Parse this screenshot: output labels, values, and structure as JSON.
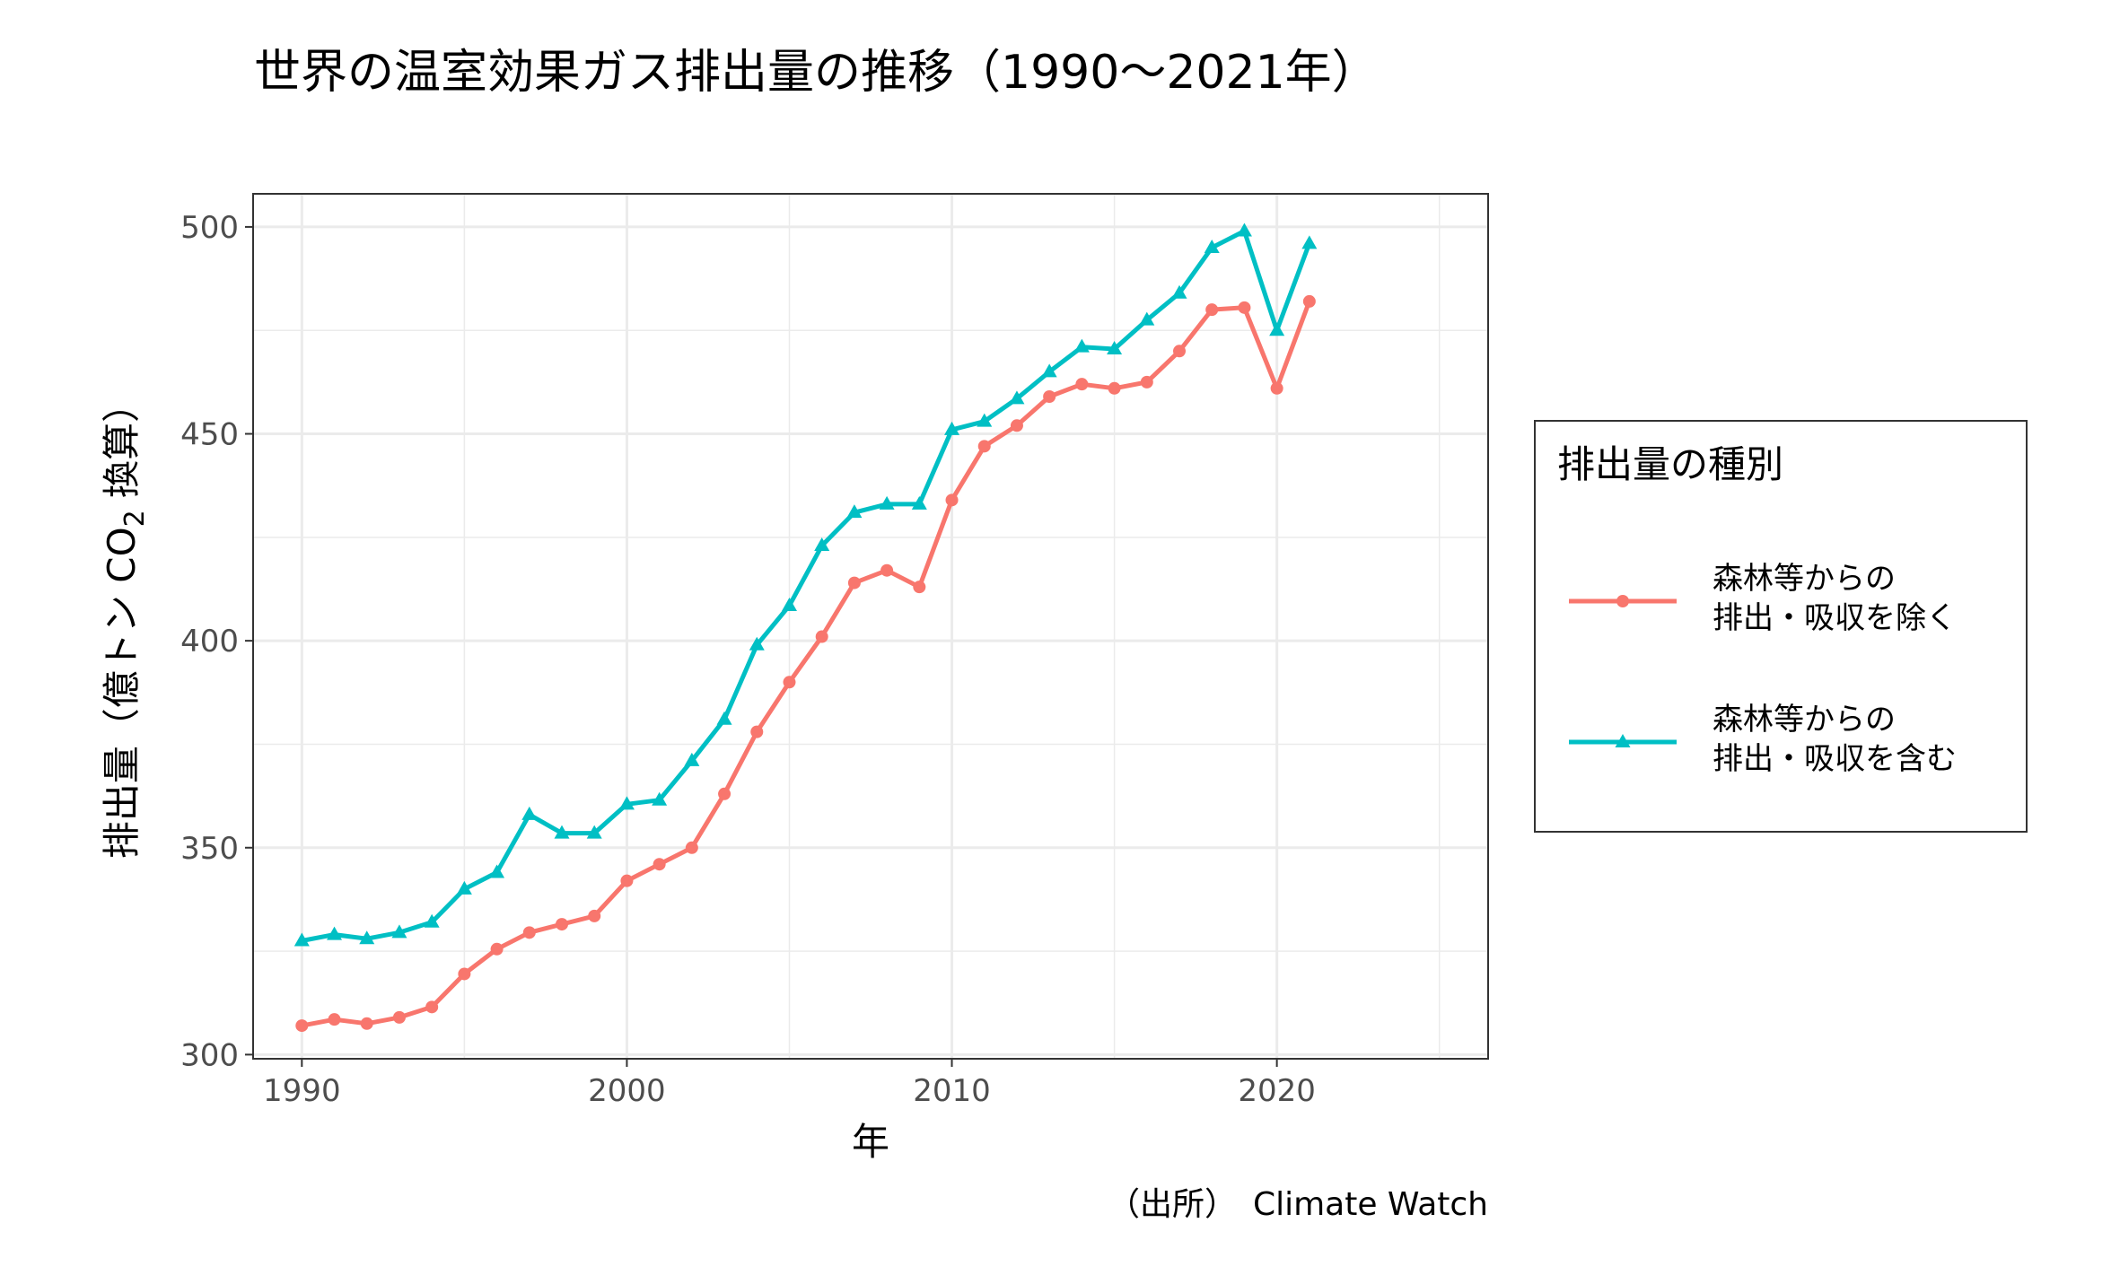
{
  "chart_data": {
    "type": "line",
    "title": "世界の温室効果ガス排出量の推移（1990〜2021年）",
    "xlabel": "年",
    "ylabel_main": "排出量（億トン CO",
    "ylabel_sub": "2",
    "ylabel_tail": " 換算）",
    "caption": "（出所）　Climate Watch",
    "xlim": [
      1988.5,
      2026.5
    ],
    "ylim": [
      299,
      508
    ],
    "x_ticks": [
      1990,
      2000,
      2010,
      2020
    ],
    "y_ticks": [
      300,
      350,
      400,
      450,
      500
    ],
    "grid": true,
    "legend": {
      "title": "排出量の種別",
      "position": "right"
    },
    "x": [
      1990,
      1991,
      1992,
      1993,
      1994,
      1995,
      1996,
      1997,
      1998,
      1999,
      2000,
      2001,
      2002,
      2003,
      2004,
      2005,
      2006,
      2007,
      2008,
      2009,
      2010,
      2011,
      2012,
      2013,
      2014,
      2015,
      2016,
      2017,
      2018,
      2019,
      2020,
      2021
    ],
    "series": [
      {
        "name_line1": "森林等からの",
        "name_line2": "排出・吸収を除く",
        "color": "#F8766D",
        "marker": "circle",
        "values": [
          307,
          308.5,
          307.5,
          309,
          311.5,
          319.5,
          325.5,
          329.5,
          331.5,
          333.5,
          342,
          346,
          350,
          363,
          378,
          390,
          401,
          414,
          417,
          413,
          434,
          447,
          452,
          459,
          462,
          461,
          462.5,
          470,
          480,
          480.5,
          461,
          482
        ]
      },
      {
        "name_line1": "森林等からの",
        "name_line2": "排出・吸収を含む",
        "color": "#00BFC4",
        "marker": "triangle",
        "values": [
          327.5,
          329,
          328,
          329.5,
          332,
          340,
          344,
          358,
          353.5,
          353.5,
          360.5,
          361.5,
          371,
          381,
          399,
          408.5,
          423,
          431,
          433,
          433,
          451,
          453,
          458.5,
          465,
          471,
          470.5,
          477.5,
          484,
          495,
          499,
          475,
          496
        ]
      }
    ]
  }
}
